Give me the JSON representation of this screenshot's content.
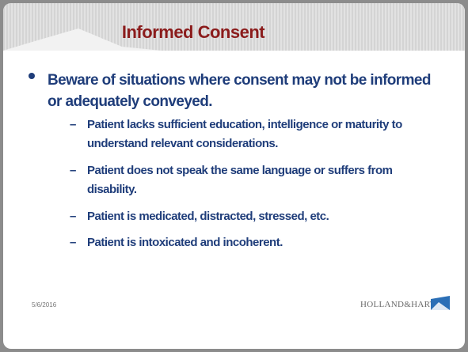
{
  "header": {
    "title": "Informed Consent"
  },
  "bullets": [
    {
      "text": "Beware of situations where consent may not be informed or adequately conveyed.",
      "sub": [
        "Patient lacks sufficient education, intelligence or maturity to understand relevant considerations.",
        "Patient does not speak the same language or suffers from disability.",
        "Patient is medicated, distracted, stressed, etc.",
        "Patient is intoxicated and incoherent."
      ]
    }
  ],
  "footer": {
    "date": "5/6/2016",
    "logo": "HOLLAND&HART."
  }
}
